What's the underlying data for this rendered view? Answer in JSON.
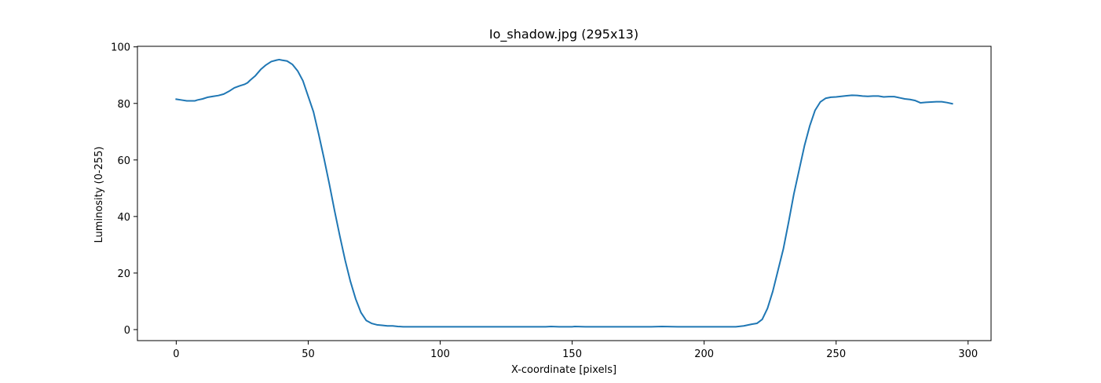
{
  "chart_data": {
    "type": "line",
    "title": "Io_shadow.jpg (295x13)",
    "xlabel": "X-coordinate [pixels]",
    "ylabel": "Luminosity (0-255)",
    "xlim": [
      -14.7,
      308.7
    ],
    "ylim": [
      -3.9,
      100.2
    ],
    "xticks": [
      0,
      50,
      100,
      150,
      200,
      250,
      300
    ],
    "yticks": [
      0,
      20,
      40,
      60,
      80,
      100
    ],
    "grid": false,
    "line_color": "#1f77b4",
    "series": [
      {
        "x": [
          0,
          2,
          4,
          6,
          7,
          8,
          10,
          12,
          14,
          16,
          18,
          20,
          22,
          24,
          26,
          27,
          28,
          30,
          32,
          34,
          36,
          38,
          39,
          40,
          42,
          44,
          46,
          48,
          50,
          52,
          54,
          56,
          58,
          60,
          62,
          64,
          66,
          68,
          70,
          72,
          74,
          76,
          78,
          80,
          82,
          84,
          86,
          90,
          100,
          110,
          120,
          130,
          140,
          142,
          145,
          150,
          151,
          155,
          160,
          170,
          180,
          184,
          190,
          200,
          210,
          212,
          215,
          218,
          220,
          222,
          224,
          226,
          228,
          230,
          232,
          234,
          236,
          238,
          240,
          242,
          244,
          246,
          248,
          250,
          252,
          254,
          256,
          258,
          260,
          262,
          264,
          266,
          268,
          270,
          272,
          274,
          276,
          278,
          280,
          282,
          284,
          286,
          288,
          290,
          292,
          294
        ],
        "y": [
          81.5,
          81.2,
          80.9,
          80.9,
          80.9,
          81.2,
          81.6,
          82.2,
          82.5,
          82.8,
          83.3,
          84.3,
          85.5,
          86.2,
          86.8,
          87.3,
          88.2,
          89.8,
          92.0,
          93.6,
          94.8,
          95.3,
          95.5,
          95.3,
          95.0,
          93.8,
          91.5,
          88.0,
          82.5,
          77.0,
          69.0,
          60.5,
          51.5,
          42.0,
          33.0,
          24.5,
          17.0,
          10.8,
          6.0,
          3.2,
          2.2,
          1.7,
          1.5,
          1.3,
          1.3,
          1.1,
          1.0,
          1.0,
          1.0,
          1.0,
          1.0,
          1.0,
          1.0,
          1.1,
          1.0,
          1.0,
          1.1,
          1.0,
          1.0,
          1.0,
          1.0,
          1.1,
          1.0,
          1.0,
          1.0,
          1.0,
          1.3,
          1.9,
          2.2,
          3.6,
          7.5,
          13.5,
          21.0,
          28.5,
          38.0,
          48.0,
          56.5,
          65.0,
          72.0,
          77.5,
          80.5,
          81.8,
          82.2,
          82.3,
          82.5,
          82.7,
          82.9,
          82.8,
          82.6,
          82.5,
          82.6,
          82.6,
          82.3,
          82.4,
          82.4,
          82.0,
          81.6,
          81.4,
          81.0,
          80.2,
          80.4,
          80.5,
          80.6,
          80.6,
          80.3,
          79.9
        ]
      }
    ]
  }
}
